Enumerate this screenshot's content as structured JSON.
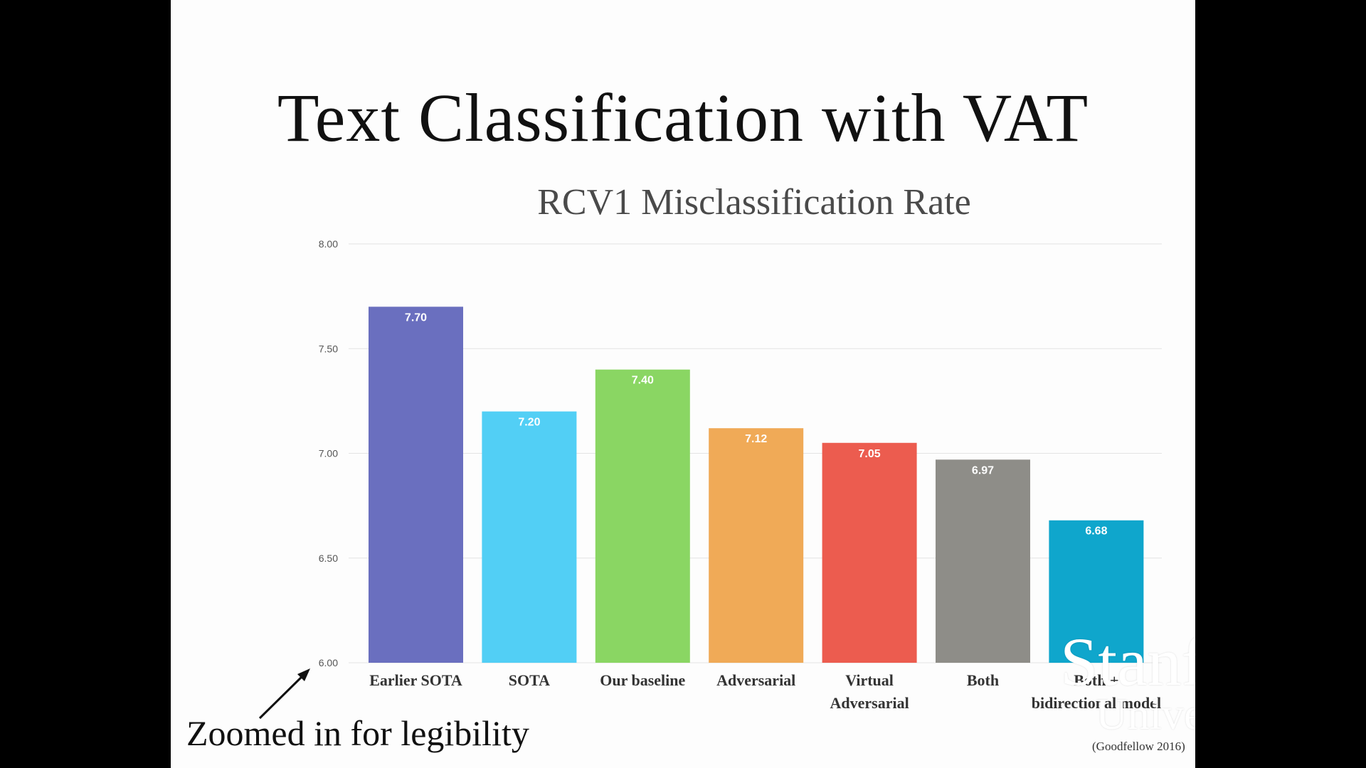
{
  "slide": {
    "title": "Text Classification with VAT",
    "zoom_note": "Zoomed in for legibility",
    "citation": "(Goodfellow 2016)",
    "logo": {
      "line1": "Stanford",
      "line2": "University"
    }
  },
  "chart_data": {
    "type": "bar",
    "title": "RCV1 Misclassification Rate",
    "xlabel": "",
    "ylabel": "",
    "ylim": [
      6.0,
      8.0
    ],
    "yticks": [
      "6.00",
      "6.50",
      "7.00",
      "7.50",
      "8.00"
    ],
    "grid": true,
    "categories": [
      [
        "Earlier SOTA"
      ],
      [
        "SOTA"
      ],
      [
        "Our baseline"
      ],
      [
        "Adversarial"
      ],
      [
        "Virtual",
        "Adversarial"
      ],
      [
        "Both"
      ],
      [
        "Both +",
        "bidirectional model"
      ]
    ],
    "values": [
      7.7,
      7.2,
      7.4,
      7.12,
      7.05,
      6.97,
      6.68
    ],
    "value_labels": [
      "7.70",
      "7.20",
      "7.40",
      "7.12",
      "7.05",
      "6.97",
      "6.68"
    ],
    "colors": [
      "#6a6fbf",
      "#52cff5",
      "#8ad663",
      "#f0aa57",
      "#ec5c4f",
      "#8e8d88",
      "#0fa6cc"
    ]
  }
}
